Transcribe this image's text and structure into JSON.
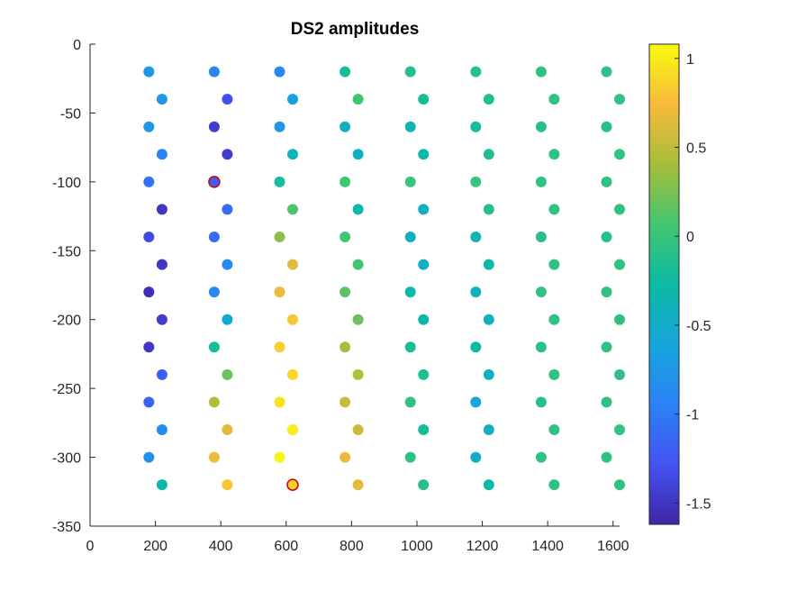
{
  "chart_data": {
    "type": "scatter",
    "title": "DS2 amplitudes",
    "xlabel": "",
    "ylabel": "",
    "xlim": [
      0,
      1620
    ],
    "ylim": [
      -350,
      0
    ],
    "xticks": [
      0,
      200,
      400,
      600,
      800,
      1000,
      1200,
      1400,
      1600
    ],
    "yticks": [
      0,
      -50,
      -100,
      -150,
      -200,
      -250,
      -300,
      -350
    ],
    "grid": false,
    "colorbar": {
      "colormap": "parula",
      "clim": [
        -1.62,
        1.08
      ],
      "ticks": [
        1,
        0.5,
        0,
        -0.5,
        -1,
        -1.5
      ]
    },
    "highlighted": [
      [
        380,
        -100
      ],
      [
        620,
        -320
      ]
    ],
    "highlight_color": "#cc0000",
    "points": [
      [
        180,
        -20,
        -0.75
      ],
      [
        380,
        -20,
        -0.9
      ],
      [
        580,
        -20,
        -0.9
      ],
      [
        780,
        -20,
        -0.2
      ],
      [
        980,
        -20,
        -0.15
      ],
      [
        1180,
        -20,
        -0.1
      ],
      [
        1380,
        -20,
        -0.05
      ],
      [
        1580,
        -20,
        -0.05
      ],
      [
        220,
        -40,
        -0.75
      ],
      [
        420,
        -40,
        -1.3
      ],
      [
        620,
        -40,
        -0.65
      ],
      [
        820,
        -40,
        0.05
      ],
      [
        1020,
        -40,
        -0.2
      ],
      [
        1220,
        -40,
        -0.15
      ],
      [
        1420,
        -40,
        -0.05
      ],
      [
        1620,
        -40,
        -0.05
      ],
      [
        180,
        -60,
        -0.75
      ],
      [
        380,
        -60,
        -1.45
      ],
      [
        580,
        -60,
        -0.75
      ],
      [
        780,
        -60,
        -0.45
      ],
      [
        980,
        -60,
        -0.35
      ],
      [
        1180,
        -60,
        -0.2
      ],
      [
        1380,
        -60,
        -0.1
      ],
      [
        1580,
        -60,
        -0.1
      ],
      [
        220,
        -80,
        -0.95
      ],
      [
        420,
        -80,
        -1.45
      ],
      [
        620,
        -80,
        -0.4
      ],
      [
        820,
        -80,
        -0.45
      ],
      [
        1020,
        -80,
        -0.3
      ],
      [
        1220,
        -80,
        -0.15
      ],
      [
        1420,
        -80,
        -0.05
      ],
      [
        1620,
        -80,
        -0.05
      ],
      [
        180,
        -100,
        -1.05
      ],
      [
        380,
        -100,
        -1.2
      ],
      [
        580,
        -100,
        -0.2
      ],
      [
        780,
        -100,
        0.05
      ],
      [
        980,
        -100,
        0.0
      ],
      [
        1180,
        -100,
        0.0
      ],
      [
        1380,
        -100,
        -0.05
      ],
      [
        1580,
        -100,
        -0.05
      ],
      [
        220,
        -120,
        -1.5
      ],
      [
        420,
        -120,
        -1.1
      ],
      [
        620,
        -120,
        0.1
      ],
      [
        820,
        -120,
        -0.3
      ],
      [
        1020,
        -120,
        -0.45
      ],
      [
        1220,
        -120,
        -0.1
      ],
      [
        1420,
        -120,
        -0.05
      ],
      [
        1620,
        -120,
        -0.05
      ],
      [
        180,
        -140,
        -1.35
      ],
      [
        380,
        -140,
        -1.1
      ],
      [
        580,
        -140,
        0.3
      ],
      [
        780,
        -140,
        0.05
      ],
      [
        980,
        -140,
        -0.45
      ],
      [
        1180,
        -140,
        -0.35
      ],
      [
        1380,
        -140,
        -0.1
      ],
      [
        1580,
        -140,
        -0.1
      ],
      [
        220,
        -160,
        -1.5
      ],
      [
        420,
        -160,
        -0.85
      ],
      [
        620,
        -160,
        0.65
      ],
      [
        820,
        -160,
        0.05
      ],
      [
        1020,
        -160,
        -0.45
      ],
      [
        1220,
        -160,
        -0.3
      ],
      [
        1420,
        -160,
        -0.05
      ],
      [
        1620,
        -160,
        -0.05
      ],
      [
        180,
        -180,
        -1.55
      ],
      [
        380,
        -180,
        -0.9
      ],
      [
        580,
        -180,
        0.7
      ],
      [
        780,
        -180,
        0.15
      ],
      [
        980,
        -180,
        -0.3
      ],
      [
        1180,
        -180,
        -0.4
      ],
      [
        1380,
        -180,
        -0.05
      ],
      [
        1580,
        -180,
        -0.05
      ],
      [
        220,
        -200,
        -1.45
      ],
      [
        420,
        -200,
        -0.55
      ],
      [
        620,
        -200,
        0.8
      ],
      [
        820,
        -200,
        0.2
      ],
      [
        1020,
        -200,
        -0.3
      ],
      [
        1220,
        -200,
        -0.4
      ],
      [
        1420,
        -200,
        -0.05
      ],
      [
        1620,
        -200,
        -0.05
      ],
      [
        180,
        -220,
        -1.5
      ],
      [
        380,
        -220,
        -0.2
      ],
      [
        580,
        -220,
        0.85
      ],
      [
        780,
        -220,
        0.4
      ],
      [
        980,
        -220,
        -0.2
      ],
      [
        1180,
        -220,
        -0.3
      ],
      [
        1380,
        -220,
        -0.1
      ],
      [
        1580,
        -220,
        -0.05
      ],
      [
        220,
        -240,
        -1.2
      ],
      [
        420,
        -240,
        0.2
      ],
      [
        620,
        -240,
        0.9
      ],
      [
        820,
        -240,
        0.45
      ],
      [
        1020,
        -240,
        -0.15
      ],
      [
        1220,
        -240,
        -0.45
      ],
      [
        1420,
        -240,
        -0.05
      ],
      [
        1620,
        -240,
        -0.05
      ],
      [
        180,
        -260,
        -1.15
      ],
      [
        380,
        -260,
        0.45
      ],
      [
        580,
        -260,
        0.95
      ],
      [
        780,
        -260,
        0.55
      ],
      [
        980,
        -260,
        -0.05
      ],
      [
        1180,
        -260,
        -0.6
      ],
      [
        1380,
        -260,
        -0.1
      ],
      [
        1580,
        -260,
        -0.05
      ],
      [
        220,
        -280,
        -0.85
      ],
      [
        420,
        -280,
        0.65
      ],
      [
        620,
        -280,
        1.0
      ],
      [
        820,
        -280,
        0.55
      ],
      [
        1020,
        -280,
        -0.2
      ],
      [
        1220,
        -280,
        -0.45
      ],
      [
        1420,
        -280,
        -0.05
      ],
      [
        1620,
        -280,
        -0.05
      ],
      [
        180,
        -300,
        -0.8
      ],
      [
        380,
        -300,
        0.7
      ],
      [
        580,
        -300,
        1.05
      ],
      [
        780,
        -300,
        0.7
      ],
      [
        980,
        -300,
        -0.05
      ],
      [
        1180,
        -300,
        -0.5
      ],
      [
        1380,
        -300,
        -0.05
      ],
      [
        1580,
        -300,
        -0.05
      ],
      [
        220,
        -320,
        -0.3
      ],
      [
        420,
        -320,
        0.8
      ],
      [
        620,
        -320,
        0.85
      ],
      [
        820,
        -320,
        0.65
      ],
      [
        1020,
        -320,
        -0.1
      ],
      [
        1220,
        -320,
        -0.3
      ],
      [
        1420,
        -320,
        -0.05
      ],
      [
        1620,
        -320,
        -0.05
      ]
    ]
  }
}
